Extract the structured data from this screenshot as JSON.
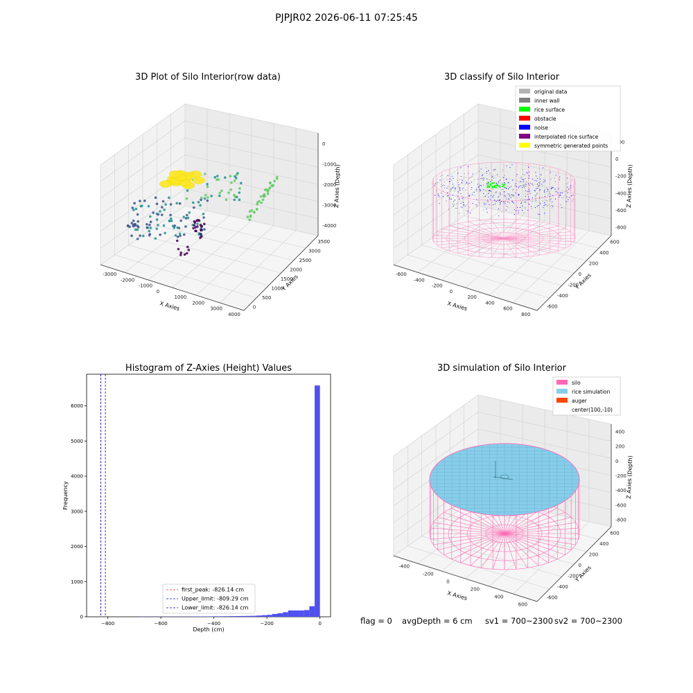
{
  "figure": {
    "suptitle": "PJPJR02 2026-06-11 07:25:45",
    "footer": {
      "flag": "flag = 0",
      "avg_depth": "avgDepth = 6 cm",
      "sv1": "sv1 = 700~2300",
      "sv2": "sv2 = 700~2300"
    }
  },
  "chart_data": [
    {
      "type": "scatter",
      "panel": "top-left",
      "title": "3D Plot of Silo Interior(row data)",
      "xlabel": "X Axies",
      "ylabel": "Y Axies",
      "zlabel": "Z Axies (Depth)",
      "x_ticks": [
        "-3000",
        "-2000",
        "-1000",
        "0",
        "1000",
        "2000",
        "3000",
        "4000"
      ],
      "y_ticks": [
        "0",
        "500",
        "1000",
        "1500",
        "2000",
        "2500",
        "3000",
        "3500"
      ],
      "z_ticks": [
        "0",
        "-1000",
        "-2000",
        "-3000",
        "-4000"
      ],
      "colormap": [
        "#440154",
        "#3b528b",
        "#21918c",
        "#5ec962",
        "#fde725"
      ]
    },
    {
      "type": "scatter",
      "panel": "top-right",
      "title": "3D classify of Silo Interior",
      "xlabel": "X Axies",
      "ylabel": "Y Axies",
      "zlabel": "Z Axies (Depth)",
      "x_ticks": [
        "-600",
        "-400",
        "-200",
        "0",
        "200",
        "400",
        "600",
        "800"
      ],
      "y_ticks": [
        "-600",
        "-400",
        "-200",
        "0",
        "200",
        "400",
        "600"
      ],
      "z_ticks": [
        "200",
        "0",
        "-200",
        "-400",
        "-600",
        "-800"
      ],
      "legend": {
        "position": "upper-right",
        "entries": [
          {
            "label": "original data",
            "color": "#b3b3b3"
          },
          {
            "label": "inner wall",
            "color": "#808080"
          },
          {
            "label": "rice surface",
            "color": "#00ff00"
          },
          {
            "label": "obstacle",
            "color": "#ff0000"
          },
          {
            "label": "noise",
            "color": "#0000ff"
          },
          {
            "label": "interpolated rice surface",
            "color": "#800080"
          },
          {
            "label": "symmetric generated points",
            "color": "#ffff00"
          }
        ]
      }
    },
    {
      "type": "bar",
      "panel": "bottom-left",
      "title": "Histogram of Z-Axies (Height) Values",
      "xlabel": "Depth (cm)",
      "ylabel": "Frequency",
      "xlim": [
        -880,
        40
      ],
      "ylim": [
        0,
        6900
      ],
      "x_ticks": [
        -800,
        -600,
        -400,
        -200,
        0
      ],
      "y_ticks": [
        0,
        1000,
        2000,
        3000,
        4000,
        5000,
        6000
      ],
      "bin_width": 20,
      "bar_color": "#5050ee",
      "bins": [
        {
          "start": -680,
          "count": 5
        },
        {
          "start": -660,
          "count": 3
        },
        {
          "start": -640,
          "count": 3
        },
        {
          "start": -620,
          "count": 4
        },
        {
          "start": -600,
          "count": 4
        },
        {
          "start": -580,
          "count": 5
        },
        {
          "start": -560,
          "count": 5
        },
        {
          "start": -540,
          "count": 6
        },
        {
          "start": -520,
          "count": 6
        },
        {
          "start": -500,
          "count": 7
        },
        {
          "start": -480,
          "count": 8
        },
        {
          "start": -460,
          "count": 9
        },
        {
          "start": -440,
          "count": 10
        },
        {
          "start": -420,
          "count": 11
        },
        {
          "start": -400,
          "count": 13
        },
        {
          "start": -380,
          "count": 14
        },
        {
          "start": -360,
          "count": 15
        },
        {
          "start": -340,
          "count": 18
        },
        {
          "start": -320,
          "count": 20
        },
        {
          "start": -300,
          "count": 22
        },
        {
          "start": -280,
          "count": 25
        },
        {
          "start": -260,
          "count": 28
        },
        {
          "start": -240,
          "count": 35
        },
        {
          "start": -220,
          "count": 45
        },
        {
          "start": -200,
          "count": 55
        },
        {
          "start": -180,
          "count": 80
        },
        {
          "start": -160,
          "count": 100
        },
        {
          "start": -140,
          "count": 130
        },
        {
          "start": -120,
          "count": 180
        },
        {
          "start": -100,
          "count": 180
        },
        {
          "start": -80,
          "count": 180
        },
        {
          "start": -60,
          "count": 190
        },
        {
          "start": -40,
          "count": 300
        },
        {
          "start": -20,
          "count": 6580
        }
      ],
      "lines": [
        {
          "label": "first_peak: -826.14 cm",
          "x": -826.14,
          "color": "#dd2222"
        },
        {
          "label": "Upper_limit: -809.29 cm",
          "x": -809.29,
          "color": "#0000cc"
        },
        {
          "label": "Lower_limit: -826.14 cm",
          "x": -826.14,
          "color": "#0000cc"
        }
      ],
      "legend_position": "lower-center"
    },
    {
      "type": "scatter",
      "panel": "bottom-right",
      "title": "3D simulation of Silo Interior",
      "xlabel": "X Axies",
      "ylabel": "Y Axies",
      "zlabel": "Z Axies (Depth)",
      "x_ticks": [
        "-400",
        "-200",
        "0",
        "200",
        "400",
        "600"
      ],
      "y_ticks": [
        "-600",
        "-400",
        "-200",
        "0",
        "200",
        "400",
        "600"
      ],
      "z_ticks": [
        "400",
        "200",
        "0",
        "-200",
        "-400",
        "-600",
        "-800"
      ],
      "legend": {
        "position": "upper-right",
        "entries": [
          {
            "label": "silo",
            "color": "#ff69b4"
          },
          {
            "label": "rice simulation",
            "color": "#87ceeb"
          },
          {
            "label": "auger",
            "color": "#ff4500"
          },
          {
            "label": "center(100,-10)",
            "color": "#ffffff"
          }
        ]
      }
    }
  ]
}
